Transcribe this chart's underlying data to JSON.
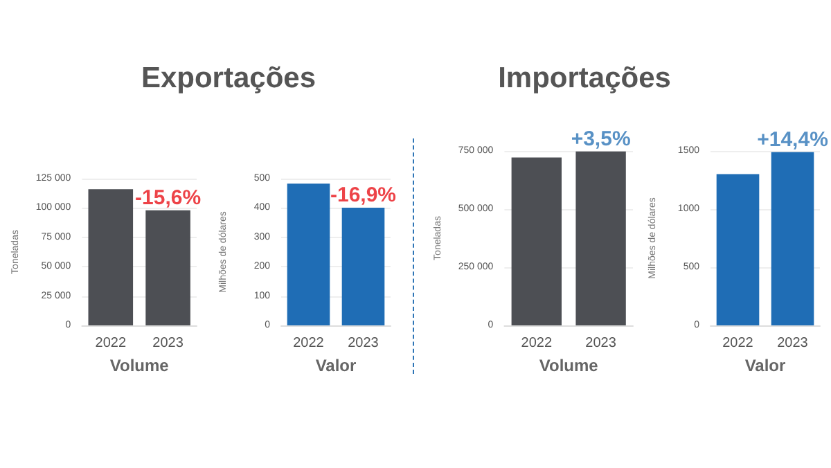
{
  "chart_data": [
    {
      "type": "bar",
      "title": "Exportações",
      "categories": [
        "2022",
        "2023"
      ],
      "values": [
        116000,
        98000
      ],
      "color": "#4d4f54",
      "xlabel": "Volume",
      "ylabel": "Toneladas",
      "ylim": [
        0,
        125000
      ],
      "yticks": [
        0,
        25000,
        50000,
        75000,
        100000,
        125000
      ],
      "grid": "y",
      "annotations": [
        {
          "text": "-15,6%",
          "x": "2023",
          "y": 98000
        }
      ]
    },
    {
      "type": "bar",
      "categories": [
        "2022",
        "2023"
      ],
      "values": [
        483,
        401
      ],
      "color": "#1f6db5",
      "xlabel": "Valor",
      "ylabel": "Milhões de dólares",
      "ylim": [
        0,
        500
      ],
      "yticks": [
        0,
        100,
        200,
        300,
        400,
        500
      ],
      "grid": "y",
      "annotations": [
        {
          "text": "-16,9%",
          "x": "2023",
          "y": 401
        }
      ]
    },
    {
      "type": "bar",
      "title": "Importações",
      "categories": [
        "2022",
        "2023"
      ],
      "values": [
        722000,
        748000
      ],
      "color": "#4d4f54",
      "xlabel": "Volume",
      "ylabel": "Toneladas",
      "ylim": [
        0,
        750000
      ],
      "yticks": [
        0,
        250000,
        500000,
        750000
      ],
      "grid": "y",
      "annotations": [
        {
          "text": "+3,5%",
          "x": "2023",
          "y": 748000
        }
      ]
    },
    {
      "type": "bar",
      "categories": [
        "2022",
        "2023"
      ],
      "values": [
        1300,
        1490
      ],
      "color": "#1f6db5",
      "xlabel": "Valor",
      "ylabel": "Milhões de dólares",
      "ylim": [
        0,
        1500
      ],
      "yticks": [
        0,
        500,
        1000,
        1500
      ],
      "grid": "y",
      "annotations": [
        {
          "text": "+14,4%",
          "x": "2023",
          "y": 1490
        }
      ]
    }
  ]
}
